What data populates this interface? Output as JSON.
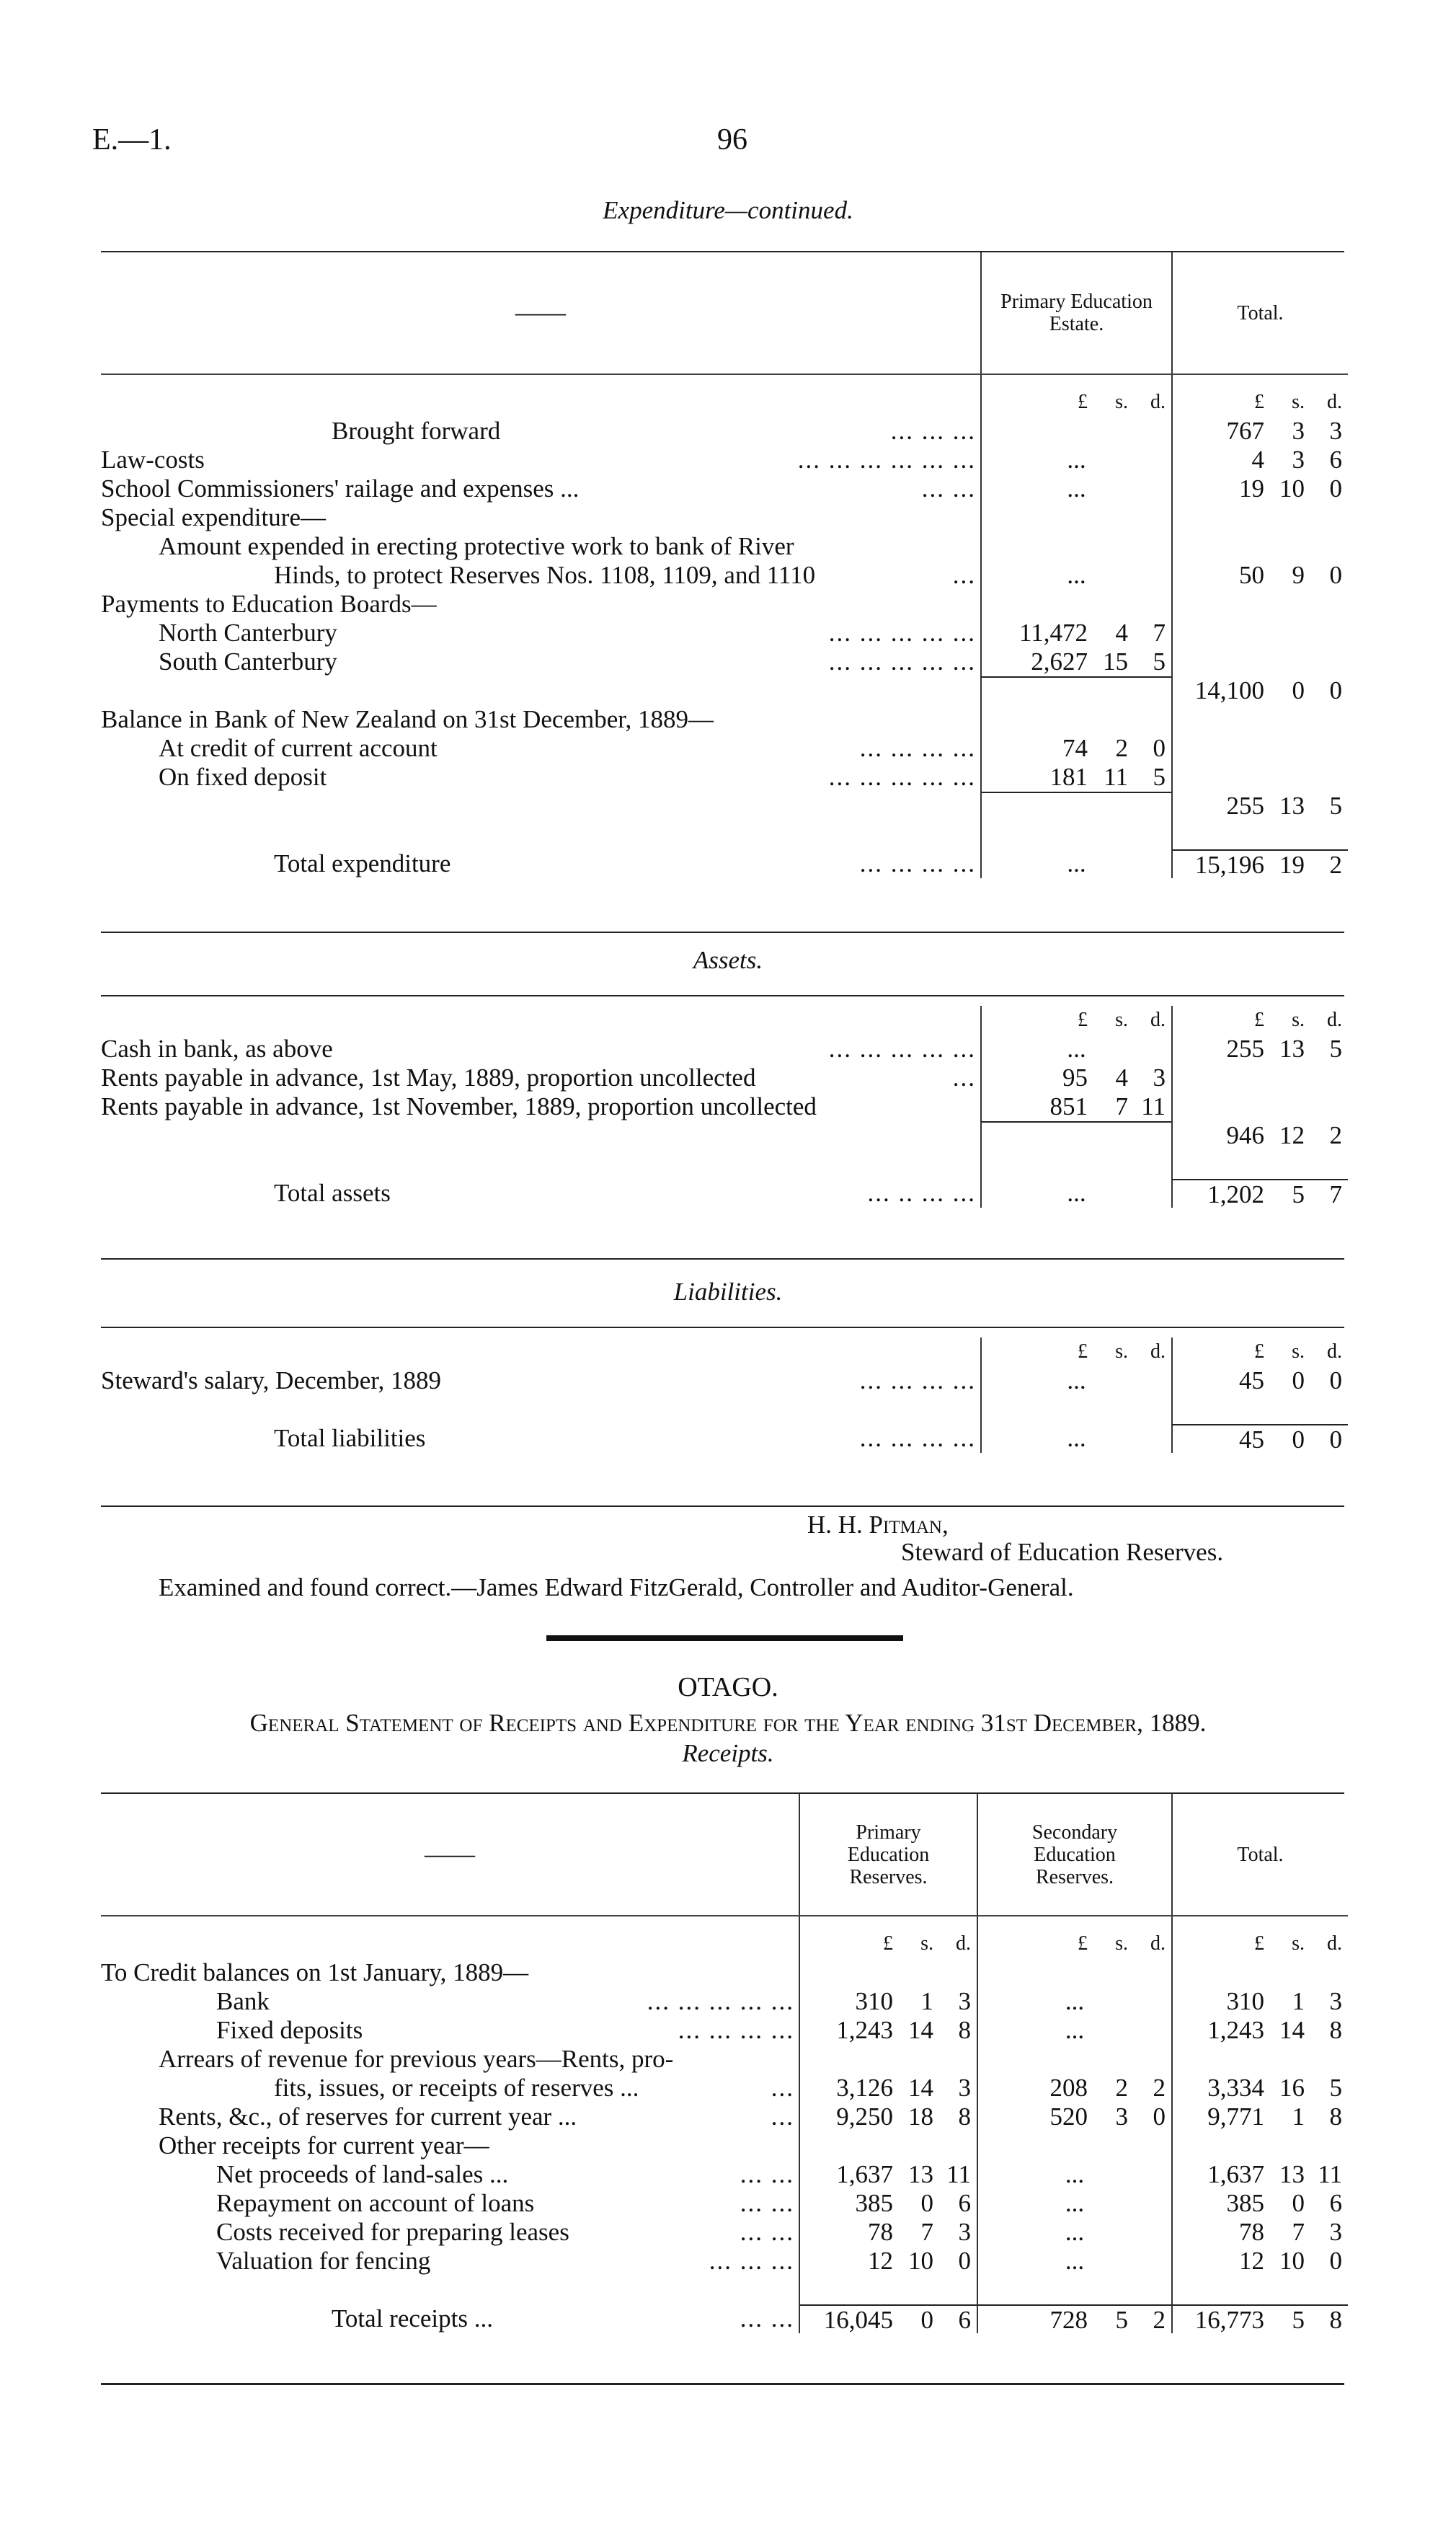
{
  "header": {
    "ref": "E.—1.",
    "page": "96"
  },
  "expenditure": {
    "title": "Expenditure—continued.",
    "head_dash": "——",
    "columns": [
      "Primary Education Estate.",
      "Total."
    ],
    "rows": [
      {
        "cells": [
          [
            "£",
            "s.",
            "d."
          ],
          [
            "£",
            "s.",
            "d."
          ]
        ],
        "unit": true
      },
      {
        "label": "Brought forward",
        "indent": 4,
        "dots": "...   ...   ...",
        "cells": [
          null,
          [
            "767",
            "3",
            "3"
          ]
        ]
      },
      {
        "label": "Law-costs",
        "indent": 0,
        "dots": "...   ...   ...   ...   ...   ...",
        "cells": [
          "...",
          [
            "4",
            "3",
            "6"
          ]
        ]
      },
      {
        "label": "School Commissioners' railage and expenses ...",
        "indent": 0,
        "dots": "...   ...",
        "cells": [
          "...",
          [
            "19",
            "10",
            "0"
          ]
        ]
      },
      {
        "label": "Special expenditure—",
        "indent": 0,
        "cells": [
          null,
          null
        ]
      },
      {
        "label": "Amount expended in erecting protective work to bank of River",
        "indent": 1,
        "cells": [
          null,
          null
        ]
      },
      {
        "label": "Hinds, to protect Reserves Nos. 1108, 1109, and 1110",
        "indent": 3,
        "dots": "...",
        "cells": [
          "...",
          [
            "50",
            "9",
            "0"
          ]
        ]
      },
      {
        "label": "Payments to Education Boards—",
        "indent": 0,
        "cells": [
          null,
          null
        ]
      },
      {
        "label": "North Canterbury",
        "indent": 1,
        "dots": "...   ...   ...   ...   ...",
        "cells": [
          [
            "11,472",
            "4",
            "7"
          ],
          null
        ]
      },
      {
        "label": "South Canterbury",
        "indent": 1,
        "dots": "...   ...   ...   ...   ...",
        "cells": [
          [
            "2,627",
            "15",
            "5"
          ],
          null
        ]
      },
      {
        "cells": [
          null,
          [
            "14,100",
            "0",
            "0"
          ]
        ],
        "rules": [
          0
        ]
      },
      {
        "label": "Balance in Bank of New Zealand on 31st December, 1889—",
        "indent": 0,
        "cells": [
          null,
          null
        ]
      },
      {
        "label": "At credit of current account",
        "indent": 1,
        "dots": "...   ...   ...   ...",
        "cells": [
          [
            "74",
            "2",
            "0"
          ],
          null
        ]
      },
      {
        "label": "On fixed deposit",
        "indent": 1,
        "dots": "...   ...   ...   ...   ...",
        "cells": [
          [
            "181",
            "11",
            "5"
          ],
          null
        ]
      },
      {
        "cells": [
          null,
          [
            "255",
            "13",
            "5"
          ]
        ],
        "rules": [
          0
        ]
      },
      {
        "cells": [
          null,
          null
        ]
      },
      {
        "label": "Total expenditure",
        "indent": 3,
        "dots": "...   ...   ...   ...",
        "cells": [
          "...",
          [
            "15,196",
            "19",
            "2"
          ]
        ],
        "rules": [
          1
        ]
      }
    ]
  },
  "assets": {
    "title": "Assets.",
    "rows": [
      {
        "cells": [
          [
            "£",
            "s.",
            "d."
          ],
          [
            "£",
            "s.",
            "d."
          ]
        ],
        "unit": true
      },
      {
        "label": "Cash in bank, as above",
        "indent": 0,
        "dots": "...   ...   ...   ...   ...",
        "cells": [
          "...",
          [
            "255",
            "13",
            "5"
          ]
        ]
      },
      {
        "label": "Rents payable in advance, 1st May, 1889, proportion uncollected",
        "indent": 0,
        "dots": "...",
        "cells": [
          [
            "95",
            "4",
            "3"
          ],
          null
        ]
      },
      {
        "label": "Rents payable in advance, 1st November, 1889, proportion uncollected",
        "indent": 0,
        "cells": [
          [
            "851",
            "7",
            "11"
          ],
          null
        ]
      },
      {
        "cells": [
          null,
          [
            "946",
            "12",
            "2"
          ]
        ],
        "rules": [
          0
        ]
      },
      {
        "cells": [
          null,
          null
        ]
      },
      {
        "label": "Total assets",
        "indent": 3,
        "dots": "...   ..   ...   ...",
        "cells": [
          "...",
          [
            "1,202",
            "5",
            "7"
          ]
        ],
        "rules": [
          1
        ]
      }
    ]
  },
  "liabilities": {
    "title": "Liabilities.",
    "rows": [
      {
        "cells": [
          [
            "£",
            "s.",
            "d."
          ],
          [
            "£",
            "s.",
            "d."
          ]
        ],
        "unit": true
      },
      {
        "label": "Steward's salary, December, 1889",
        "indent": 0,
        "dots": "...   ...   ...   ...",
        "cells": [
          "...",
          [
            "45",
            "0",
            "0"
          ]
        ]
      },
      {
        "cells": [
          null,
          null
        ]
      },
      {
        "label": "Total liabilities",
        "indent": 3,
        "dots": "...   ...   ...   ...",
        "cells": [
          "...",
          [
            "45",
            "0",
            "0"
          ]
        ],
        "rules": [
          1
        ]
      }
    ]
  },
  "signature": {
    "name": "H. H. Pitman,",
    "title": "Steward of Education Reserves.",
    "examined": "Examined and found correct.—James Edward FitzGerald, Controller and Auditor-General."
  },
  "otago": {
    "heading": "OTAGO.",
    "statement": "General Statement of Receipts and Expenditure for the Year ending 31st December, 1889.",
    "subtitle": "Receipts.",
    "head_dash": "——",
    "columns": [
      "Primary Education Reserves.",
      "Secondary Education Reserves.",
      "Total."
    ],
    "rows": [
      {
        "cells": [
          [
            "£",
            "s.",
            "d."
          ],
          [
            "£",
            "s.",
            "d."
          ],
          [
            "£",
            "s.",
            "d."
          ]
        ],
        "unit": true
      },
      {
        "label": "To Credit balances on 1st January, 1889—",
        "indent": 0,
        "cells": [
          null,
          null,
          null
        ]
      },
      {
        "label": "Bank",
        "indent": 2,
        "dots": "...   ...   ...   ...   ...",
        "cells": [
          [
            "310",
            "1",
            "3"
          ],
          "...",
          [
            "310",
            "1",
            "3"
          ]
        ]
      },
      {
        "label": "Fixed deposits",
        "indent": 2,
        "dots": "...   ...   ...   ...",
        "cells": [
          [
            "1,243",
            "14",
            "8"
          ],
          "...",
          [
            "1,243",
            "14",
            "8"
          ]
        ]
      },
      {
        "label": "Arrears of revenue for previous years—Rents, pro-",
        "indent": 1,
        "cells": [
          null,
          null,
          null
        ]
      },
      {
        "label": "fits, issues, or receipts of reserves ...",
        "indent": 3,
        "dots": "...",
        "cells": [
          [
            "3,126",
            "14",
            "3"
          ],
          [
            "208",
            "2",
            "2"
          ],
          [
            "3,334",
            "16",
            "5"
          ]
        ]
      },
      {
        "label": "Rents, &c., of reserves for current year ...",
        "indent": 1,
        "dots": "...",
        "cells": [
          [
            "9,250",
            "18",
            "8"
          ],
          [
            "520",
            "3",
            "0"
          ],
          [
            "9,771",
            "1",
            "8"
          ]
        ]
      },
      {
        "label": "Other receipts for current year—",
        "indent": 1,
        "cells": [
          null,
          null,
          null
        ]
      },
      {
        "label": "Net proceeds of land-sales ...",
        "indent": 2,
        "dots": "...   ...",
        "cells": [
          [
            "1,637",
            "13",
            "11"
          ],
          "...",
          [
            "1,637",
            "13",
            "11"
          ]
        ]
      },
      {
        "label": "Repayment on account of loans",
        "indent": 2,
        "dots": "...   ...",
        "cells": [
          [
            "385",
            "0",
            "6"
          ],
          "...",
          [
            "385",
            "0",
            "6"
          ]
        ]
      },
      {
        "label": "Costs received for preparing leases",
        "indent": 2,
        "dots": "...   ...",
        "cells": [
          [
            "78",
            "7",
            "3"
          ],
          "...",
          [
            "78",
            "7",
            "3"
          ]
        ]
      },
      {
        "label": "Valuation for fencing",
        "indent": 2,
        "dots": "...   ...   ...",
        "cells": [
          [
            "12",
            "10",
            "0"
          ],
          "...",
          [
            "12",
            "10",
            "0"
          ]
        ]
      },
      {
        "cells": [
          null,
          null,
          null
        ]
      },
      {
        "label": "Total receipts ...",
        "indent": 4,
        "dots": "...   ...",
        "cells": [
          [
            "16,045",
            "0",
            "6"
          ],
          [
            "728",
            "5",
            "2"
          ],
          [
            "16,773",
            "5",
            "8"
          ]
        ],
        "rules": [
          0,
          1,
          2
        ]
      }
    ]
  }
}
